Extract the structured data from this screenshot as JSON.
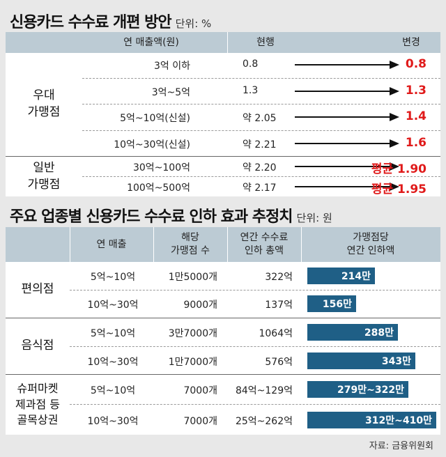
{
  "title1": {
    "text": "신용카드 수수료 개편 방안",
    "unit": "단위: %"
  },
  "table1": {
    "headers": [
      "연 매출액(원)",
      "현행",
      "변경"
    ],
    "groups": [
      {
        "name": "우대\n가맹점"
      },
      {
        "name": "일반\n가맹점"
      }
    ],
    "rows": [
      {
        "range": "3억 이하",
        "current": "0.8",
        "changed": "0.8"
      },
      {
        "range": "3억~5억",
        "current": "1.3",
        "changed": "1.3"
      },
      {
        "range": "5억~10억(신설)",
        "current": "약 2.05",
        "changed": "1.4"
      },
      {
        "range": "10억~30억(신설)",
        "current": "약 2.21",
        "changed": "1.6"
      },
      {
        "range": "30억~100억",
        "current": "약 2.20",
        "changed": "평균 1.90"
      },
      {
        "range": "100억~500억",
        "current": "약 2.17",
        "changed": "평균 1.95"
      }
    ]
  },
  "title2": {
    "text": "주요 업종별 신용카드 수수료 인하 효과 추정치",
    "unit": "단위: 원"
  },
  "table2": {
    "headers": [
      "연 매출",
      "해당\n가맹점 수",
      "연간 수수료\n인하 총액",
      "가맹점당\n연간 인하액"
    ],
    "groups": [
      {
        "name": "편의점"
      },
      {
        "name": "음식점"
      },
      {
        "name": "슈퍼마켓\n제과점 등\n골목상권"
      }
    ],
    "rows": [
      {
        "sales": "5억~10억",
        "stores": "1만5000개",
        "total": "322억",
        "per_store": "214만"
      },
      {
        "sales": "10억~30억",
        "stores": "9000개",
        "total": "137억",
        "per_store": "156만"
      },
      {
        "sales": "5억~10억",
        "stores": "3만7000개",
        "total": "1064억",
        "per_store": "288만"
      },
      {
        "sales": "10억~30억",
        "stores": "1만7000개",
        "total": "576억",
        "per_store": "343만"
      },
      {
        "sales": "5억~10억",
        "stores": "7000개",
        "total": "84억~129억",
        "per_store": "279만~322만"
      },
      {
        "sales": "10억~30억",
        "stores": "7000개",
        "total": "25억~262억",
        "per_store": "312만~410만"
      }
    ]
  },
  "chart_data": {
    "type": "bar",
    "categories": [
      "편의점 5억~10억",
      "편의점 10억~30억",
      "음식점 5억~10억",
      "음식점 10억~30억",
      "골목상권 5억~10억",
      "골목상권 10억~30억"
    ],
    "values": [
      214,
      156,
      288,
      343,
      322,
      410
    ],
    "ranges_low": [
      214,
      156,
      288,
      343,
      279,
      312
    ],
    "xlabel": "",
    "ylabel": "",
    "unit": "만원",
    "bar_color": "#1f5f86"
  },
  "colors": {
    "header": "#bccbd4",
    "accent_red": "#e01a1a",
    "bar": "#1f5f86"
  },
  "source": "자료: 금융위원회"
}
